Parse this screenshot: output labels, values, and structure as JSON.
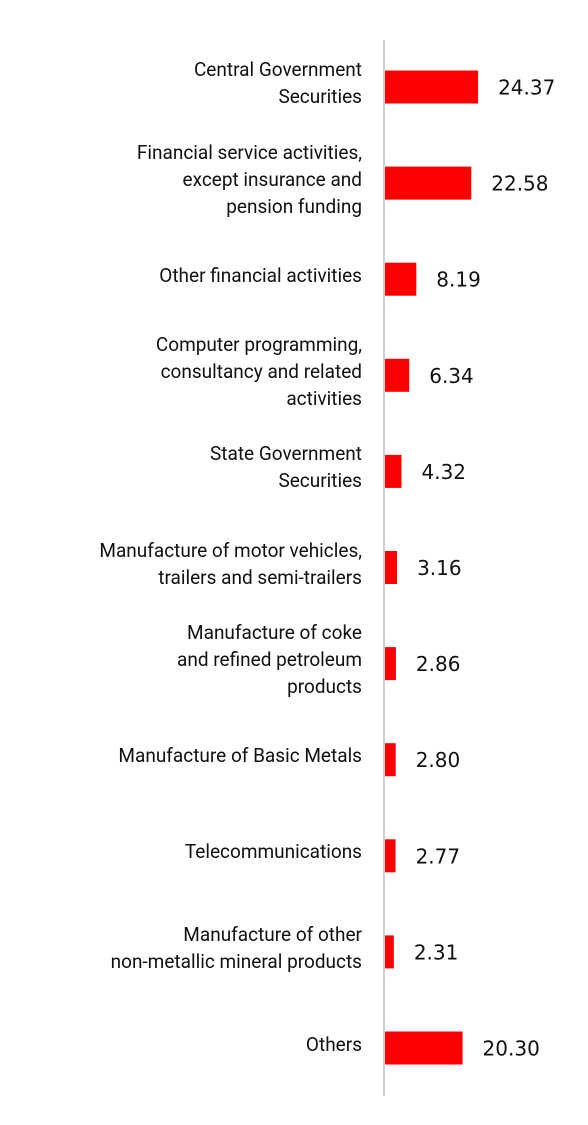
{
  "chart_data": {
    "type": "bar",
    "orientation": "horizontal",
    "categories": [
      "Central Government\nSecurities",
      "Financial service activities,\nexcept insurance and\npension funding",
      "Other financial activities",
      "Computer programming,\nconsultancy and related\nactivities",
      "State Government\nSecurities",
      "Manufacture of motor vehicles,\ntrailers and semi-trailers",
      "Manufacture of coke\nand refined petroleum\nproducts",
      "Manufacture of Basic Metals",
      "Telecommunications",
      "Manufacture of other\nnon-metallic mineral products",
      "Others"
    ],
    "values": [
      24.37,
      22.58,
      8.19,
      6.34,
      4.32,
      3.16,
      2.86,
      2.8,
      2.77,
      2.31,
      20.3
    ],
    "value_labels": [
      "24.37",
      "22.58",
      "8.19",
      "6.34",
      "4.32",
      "3.16",
      "2.86",
      "2.80",
      "2.77",
      "2.31",
      "20.30"
    ],
    "color": "#ff0000"
  }
}
